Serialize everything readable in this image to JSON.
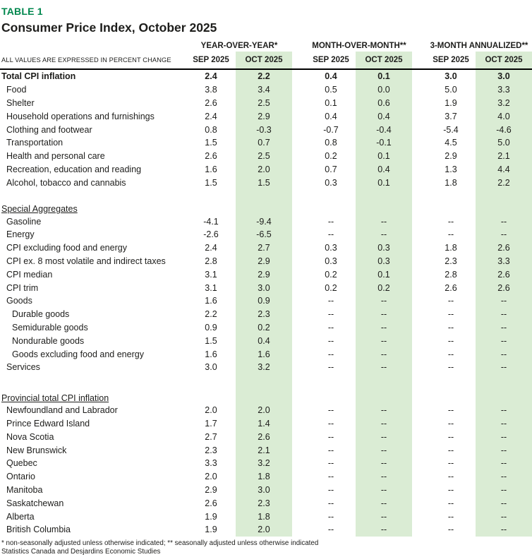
{
  "header": {
    "table_label": "TABLE 1",
    "title": "Consumer Price Index, October 2025"
  },
  "colors": {
    "accent": "#00874e",
    "highlight": "#daecd4",
    "text": "#1d1d1b",
    "rule": "#000000"
  },
  "table": {
    "corner_label": "ALL VALUES ARE EXPRESSED IN PERCENT CHANGE",
    "column_groups": [
      {
        "label": "YEAR-OVER-YEAR*"
      },
      {
        "label": "MONTH-OVER-MONTH**"
      },
      {
        "label": "3-MONTH ANNUALIZED**"
      }
    ],
    "sub_columns": [
      "SEP 2025",
      "OCT 2025",
      "SEP 2025",
      "OCT 2025",
      "SEP 2025",
      "OCT 2025"
    ],
    "rows": [
      {
        "type": "data",
        "label": "Total CPI inflation",
        "indent": 0,
        "bold": true,
        "values": [
          "2.4",
          "2.2",
          "0.4",
          "0.1",
          "3.0",
          "3.0"
        ]
      },
      {
        "type": "data",
        "label": "Food",
        "indent": 1,
        "values": [
          "3.8",
          "3.4",
          "0.5",
          "0.0",
          "5.0",
          "3.3"
        ]
      },
      {
        "type": "data",
        "label": "Shelter",
        "indent": 1,
        "values": [
          "2.6",
          "2.5",
          "0.1",
          "0.6",
          "1.9",
          "3.2"
        ]
      },
      {
        "type": "data",
        "label": "Household operations and furnishings",
        "indent": 1,
        "values": [
          "2.4",
          "2.9",
          "0.4",
          "0.4",
          "3.7",
          "4.0"
        ]
      },
      {
        "type": "data",
        "label": "Clothing and footwear",
        "indent": 1,
        "values": [
          "0.8",
          "-0.3",
          "-0.7",
          "-0.4",
          "-5.4",
          "-4.6"
        ]
      },
      {
        "type": "data",
        "label": "Transportation",
        "indent": 1,
        "values": [
          "1.5",
          "0.7",
          "0.8",
          "-0.1",
          "4.5",
          "5.0"
        ]
      },
      {
        "type": "data",
        "label": "Health and personal care",
        "indent": 1,
        "values": [
          "2.6",
          "2.5",
          "0.2",
          "0.1",
          "2.9",
          "2.1"
        ]
      },
      {
        "type": "data",
        "label": "Recreation, education and reading",
        "indent": 1,
        "values": [
          "1.6",
          "2.0",
          "0.7",
          "0.4",
          "1.3",
          "4.4"
        ]
      },
      {
        "type": "data",
        "label": "Alcohol, tobacco and cannabis",
        "indent": 1,
        "values": [
          "1.5",
          "1.5",
          "0.3",
          "0.1",
          "1.8",
          "2.2"
        ]
      },
      {
        "type": "spacer",
        "height": 12
      },
      {
        "type": "heading",
        "label": "Special Aggregates"
      },
      {
        "type": "data",
        "label": "Gasoline",
        "indent": 1,
        "values": [
          "-4.1",
          "-9.4",
          "--",
          "--",
          "--",
          "--"
        ]
      },
      {
        "type": "data",
        "label": "Energy",
        "indent": 1,
        "values": [
          "-2.6",
          "-6.5",
          "--",
          "--",
          "--",
          "--"
        ]
      },
      {
        "type": "data",
        "label": "CPI excluding food and energy",
        "indent": 1,
        "values": [
          "2.4",
          "2.7",
          "0.3",
          "0.3",
          "1.8",
          "2.6"
        ]
      },
      {
        "type": "data",
        "label": "CPI ex. 8 most volatile and indirect taxes",
        "indent": 1,
        "values": [
          "2.8",
          "2.9",
          "0.3",
          "0.3",
          "2.3",
          "3.3"
        ]
      },
      {
        "type": "data",
        "label": "CPI median",
        "indent": 1,
        "values": [
          "3.1",
          "2.9",
          "0.2",
          "0.1",
          "2.8",
          "2.6"
        ]
      },
      {
        "type": "data",
        "label": "CPI trim",
        "indent": 1,
        "values": [
          "3.1",
          "3.0",
          "0.2",
          "0.2",
          "2.6",
          "2.6"
        ]
      },
      {
        "type": "data",
        "label": "Goods",
        "indent": 1,
        "values": [
          "1.6",
          "0.9",
          "--",
          "--",
          "--",
          "--"
        ]
      },
      {
        "type": "data",
        "label": "Durable goods",
        "indent": 2,
        "values": [
          "2.2",
          "2.3",
          "--",
          "--",
          "--",
          "--"
        ]
      },
      {
        "type": "data",
        "label": "Semidurable goods",
        "indent": 2,
        "values": [
          "0.9",
          "0.2",
          "--",
          "--",
          "--",
          "--"
        ]
      },
      {
        "type": "data",
        "label": "Nondurable goods",
        "indent": 2,
        "values": [
          "1.5",
          "0.4",
          "--",
          "--",
          "--",
          "--"
        ]
      },
      {
        "type": "data",
        "label": "Goods excluding food and energy",
        "indent": 2,
        "values": [
          "1.6",
          "1.6",
          "--",
          "--",
          "--",
          "--"
        ]
      },
      {
        "type": "data",
        "label": "Services",
        "indent": 1,
        "values": [
          "3.0",
          "3.2",
          "--",
          "--",
          "--",
          "--"
        ]
      },
      {
        "type": "spacer",
        "height": 18
      },
      {
        "type": "heading",
        "label": "Provincial total CPI inflation"
      },
      {
        "type": "data",
        "label": "Newfoundland and Labrador",
        "indent": 1,
        "values": [
          "2.0",
          "2.0",
          "--",
          "--",
          "--",
          "--"
        ]
      },
      {
        "type": "data",
        "label": "Prince Edward Island",
        "indent": 1,
        "values": [
          "1.7",
          "1.4",
          "--",
          "--",
          "--",
          "--"
        ]
      },
      {
        "type": "data",
        "label": "Nova Scotia",
        "indent": 1,
        "values": [
          "2.7",
          "2.6",
          "--",
          "--",
          "--",
          "--"
        ]
      },
      {
        "type": "data",
        "label": "New Brunswick",
        "indent": 1,
        "values": [
          "2.3",
          "2.1",
          "--",
          "--",
          "--",
          "--"
        ]
      },
      {
        "type": "data",
        "label": "Quebec",
        "indent": 1,
        "values": [
          "3.3",
          "3.2",
          "--",
          "--",
          "--",
          "--"
        ]
      },
      {
        "type": "data",
        "label": "Ontario",
        "indent": 1,
        "values": [
          "2.0",
          "1.8",
          "--",
          "--",
          "--",
          "--"
        ]
      },
      {
        "type": "data",
        "label": "Manitoba",
        "indent": 1,
        "values": [
          "2.9",
          "3.0",
          "--",
          "--",
          "--",
          "--"
        ]
      },
      {
        "type": "data",
        "label": "Saskatchewan",
        "indent": 1,
        "values": [
          "2.6",
          "2.3",
          "--",
          "--",
          "--",
          "--"
        ]
      },
      {
        "type": "data",
        "label": "Alberta",
        "indent": 1,
        "values": [
          "1.9",
          "1.8",
          "--",
          "--",
          "--",
          "--"
        ]
      },
      {
        "type": "data",
        "label": "British Columbia",
        "indent": 1,
        "values": [
          "1.9",
          "2.0",
          "--",
          "--",
          "--",
          "--"
        ]
      }
    ]
  },
  "footnotes": [
    "* non-seasonally adjusted unless otherwise indicated; ** seasonally adjusted unless otherwise indicated",
    "Statistics Canada and Desjardins Economic Studies"
  ]
}
